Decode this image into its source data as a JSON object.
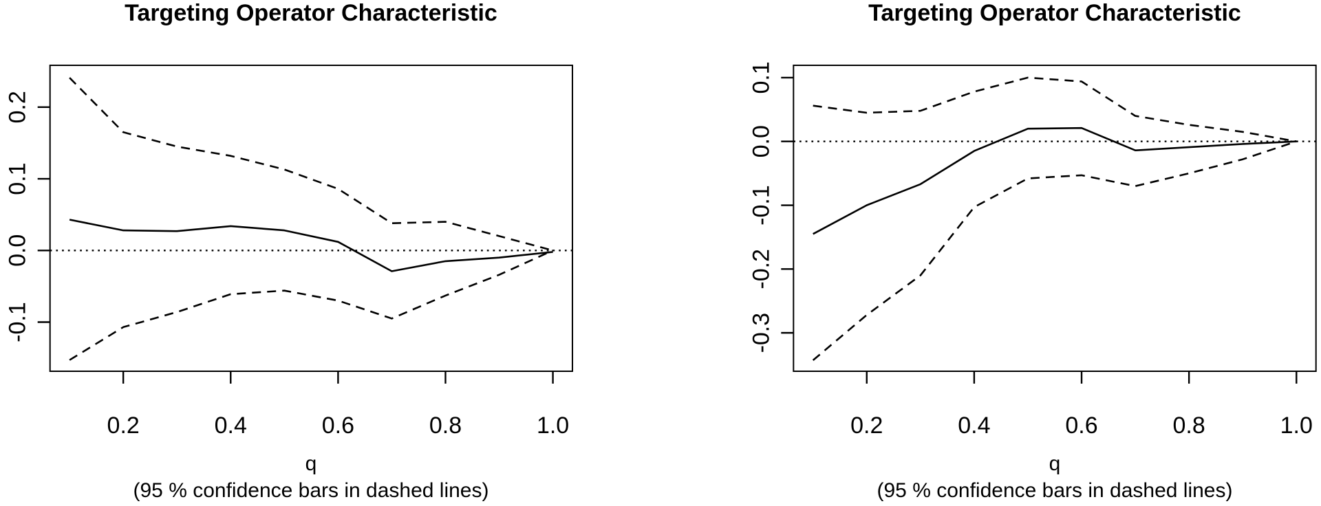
{
  "figure": {
    "background": "#ffffff",
    "ink_color": "#000000"
  },
  "chart_data": [
    {
      "type": "line",
      "title": "Targeting Operator Characteristic",
      "xlabel": "q",
      "subtitle": "(95 % confidence bars in dashed lines)",
      "x": [
        0.1,
        0.2,
        0.3,
        0.4,
        0.5,
        0.6,
        0.7,
        0.8,
        0.9,
        1.0
      ],
      "series": [
        {
          "name": "estimate",
          "line_style": "solid",
          "values": [
            0.043,
            0.028,
            0.027,
            0.034,
            0.028,
            0.012,
            -0.029,
            -0.015,
            -0.01,
            -0.002
          ]
        },
        {
          "name": "upper-95-ci",
          "line_style": "dashed",
          "values": [
            0.241,
            0.165,
            0.145,
            0.132,
            0.113,
            0.086,
            0.038,
            0.04,
            0.02,
            0.0
          ]
        },
        {
          "name": "lower-95-ci",
          "line_style": "dashed",
          "values": [
            -0.153,
            -0.107,
            -0.086,
            -0.061,
            -0.056,
            -0.07,
            -0.095,
            -0.063,
            -0.034,
            0.0
          ]
        }
      ],
      "reference_line_y": 0,
      "reference_line_style": "dotted",
      "xlim": [
        0.0636,
        1.0364
      ],
      "ylim": [
        -0.1686,
        0.2584
      ],
      "xtick_values": [
        0.2,
        0.4,
        0.6,
        0.8,
        1.0
      ],
      "xtick_labels": [
        "0.2",
        "0.4",
        "0.6",
        "0.8",
        "1.0"
      ],
      "ytick_values": [
        -0.1,
        0.0,
        0.1,
        0.2
      ],
      "ytick_labels": [
        "-0.1",
        "0.0",
        "0.1",
        "0.2"
      ],
      "grid": "off",
      "legend": "none"
    },
    {
      "type": "line",
      "title": "Targeting Operator Characteristic",
      "xlabel": "q",
      "subtitle": "(95 % confidence bars in dashed lines)",
      "x": [
        0.1,
        0.2,
        0.3,
        0.4,
        0.5,
        0.6,
        0.7,
        0.8,
        0.9,
        1.0
      ],
      "series": [
        {
          "name": "estimate",
          "line_style": "solid",
          "values": [
            -0.145,
            -0.1,
            -0.067,
            -0.015,
            0.02,
            0.021,
            -0.014,
            -0.009,
            -0.004,
            0.0
          ]
        },
        {
          "name": "upper-95-ci",
          "line_style": "dashed",
          "values": [
            0.056,
            0.045,
            0.048,
            0.078,
            0.1,
            0.094,
            0.04,
            0.026,
            0.015,
            0.0
          ]
        },
        {
          "name": "lower-95-ci",
          "line_style": "dashed",
          "values": [
            -0.343,
            -0.272,
            -0.21,
            -0.103,
            -0.058,
            -0.053,
            -0.07,
            -0.05,
            -0.028,
            0.0
          ]
        }
      ],
      "reference_line_y": 0,
      "reference_line_style": "dotted",
      "xlim": [
        0.0636,
        1.0364
      ],
      "ylim": [
        -0.3602,
        0.1193
      ],
      "xtick_values": [
        0.2,
        0.4,
        0.6,
        0.8,
        1.0
      ],
      "xtick_labels": [
        "0.2",
        "0.4",
        "0.6",
        "0.8",
        "1.0"
      ],
      "ytick_values": [
        -0.3,
        -0.2,
        -0.1,
        0.0,
        0.1
      ],
      "ytick_labels": [
        "-0.3",
        "-0.2",
        "-0.1",
        "0.0",
        "0.1"
      ],
      "grid": "off",
      "legend": "none"
    }
  ]
}
